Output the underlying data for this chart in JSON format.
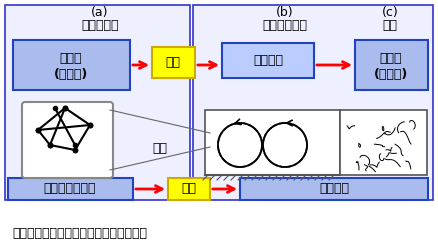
{
  "fig_width": 4.39,
  "fig_height": 2.47,
  "dpi": 100,
  "bg_color": "#ffffff",
  "caption": "図３　大気のベナール対流における創発",
  "left_panel_label": "(a)",
  "left_panel_sublabel": "分子の運動",
  "mid_panel_label": "(b)",
  "mid_panel_sublabel": "ベナールセル",
  "right_panel_label": "(c)",
  "right_panel_sublabel": "乱流",
  "box_kaos_mikro_line1": "カオス",
  "box_kaos_mikro_line2": "(ミクロ)",
  "box_kaos_makro_line1": "カオス",
  "box_kaos_makro_line2": "(マクロ)",
  "box_chitsujo_text": "秩序構造",
  "box_newton_text": "ニュートン力学",
  "box_ryutai_text": "流体力学",
  "yellow_box_text": "創発",
  "kakudai_text": "拡大",
  "panel_bg_left": "#eef0ff",
  "panel_bg_right": "#eef0ff",
  "panel_edge": "#3333cc",
  "box_blue_face": "#aabbee",
  "box_blue_edge": "#2244bb",
  "box_chitsujo_face": "#bbccff",
  "box_yellow_face": "#ffff00",
  "box_yellow_edge": "#ccaa00",
  "arrow_red": "#ff0000",
  "dark": "#222222",
  "gray": "#888888"
}
